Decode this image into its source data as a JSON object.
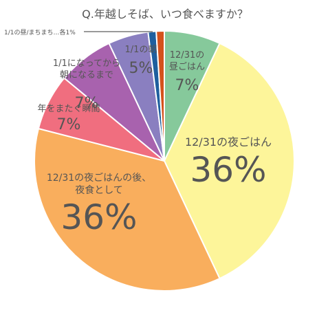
{
  "chart_data": {
    "type": "pie",
    "title": "Q.年越しそば、いつ食べますか？",
    "slices": [
      {
        "label": "12/31の昼ごはん",
        "lines": [
          "12/31の",
          "昼ごはん"
        ],
        "value": 7,
        "value_label": "7%",
        "color": "#86c99b"
      },
      {
        "label": "12/31の夜ごはん",
        "lines": [
          "12/31の夜ごはん"
        ],
        "value": 36,
        "value_label": "36%",
        "color": "#fdf59a"
      },
      {
        "label": "12/31の夜ごはんの後、夜食として",
        "lines": [
          "12/31の夜ごはんの後、",
          "夜食として"
        ],
        "value": 36,
        "value_label": "36%",
        "color": "#f9ae5d"
      },
      {
        "label": "年をまたぐ瞬間",
        "lines": [
          "年をまたぐ瞬間"
        ],
        "value": 7,
        "value_label": "7%",
        "color": "#f06e7f"
      },
      {
        "label": "1/1になってから朝になるまで",
        "lines": [
          "1/1になってから",
          "朝になるまで"
        ],
        "value": 7,
        "value_label": "7%",
        "color": "#a862ae"
      },
      {
        "label": "1/1の朝",
        "lines": [
          "1/1の朝"
        ],
        "value": 5,
        "value_label": "5%",
        "color": "#8a7fc0"
      },
      {
        "label": "1/1の昼",
        "lines": [],
        "value": 1,
        "value_label": "",
        "color": "#1f5f9e"
      },
      {
        "label": "まちまち",
        "lines": [],
        "value": 1,
        "value_label": "",
        "color": "#d4521c"
      }
    ],
    "annotation": "1/1の昼/まちまち…各1%"
  }
}
